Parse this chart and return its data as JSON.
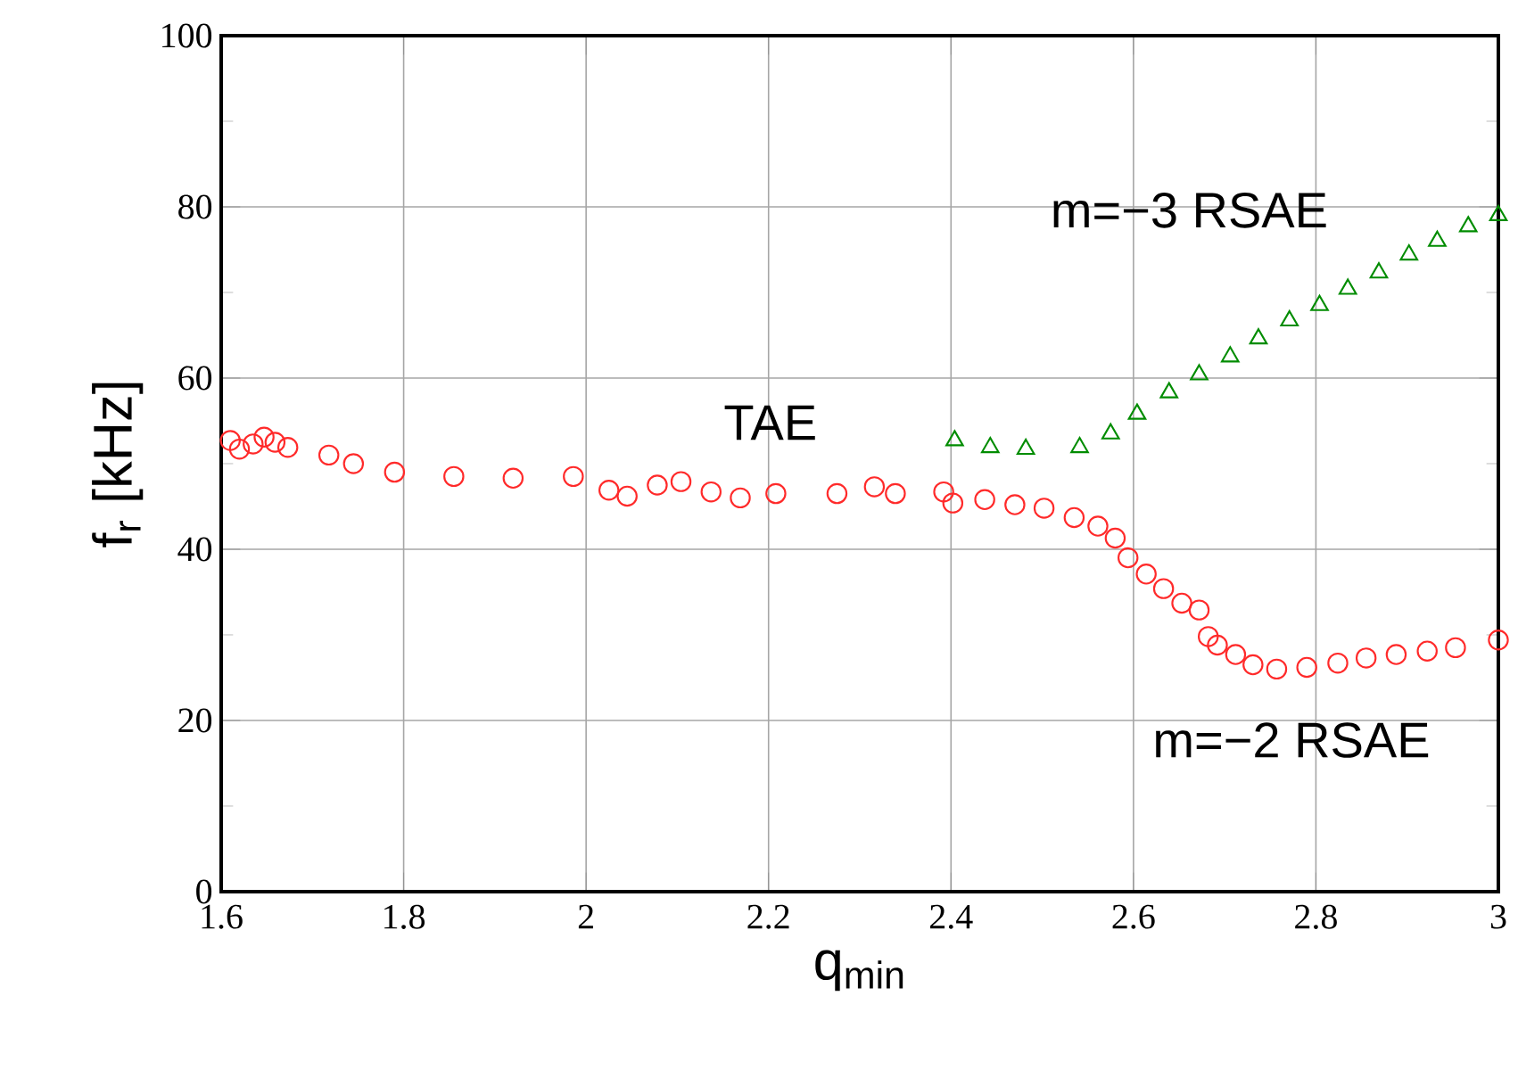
{
  "chart_data": {
    "type": "scatter",
    "xlabel": "q$_{min}$",
    "ylabel": "f$_{r}$ [kHz]",
    "xlim": [
      1.6,
      3
    ],
    "ylim": [
      0,
      100
    ],
    "xticks": [
      1.6,
      1.8,
      2,
      2.2,
      2.4,
      2.6,
      2.8,
      3
    ],
    "yticks": [
      0,
      20,
      40,
      60,
      80,
      100
    ],
    "grid": true,
    "series": [
      {
        "color": "#ff2a2a",
        "marker": "circle",
        "x": [
          1.61,
          1.62,
          1.635,
          1.647,
          1.659,
          1.673,
          1.718,
          1.745,
          1.79,
          1.855,
          1.92,
          1.986,
          2.025,
          2.045,
          2.078,
          2.104,
          2.137,
          2.169,
          2.208,
          2.275,
          2.316,
          2.339,
          2.392,
          2.402,
          2.437,
          2.47,
          2.502,
          2.535,
          2.561,
          2.58,
          2.594,
          2.614,
          2.633,
          2.653,
          2.672,
          2.682,
          2.692,
          2.712,
          2.731,
          2.757,
          2.79,
          2.824,
          2.855,
          2.888,
          2.922,
          2.953,
          3.0
        ],
        "values": [
          52.7,
          51.7,
          52.3,
          53.1,
          52.5,
          51.9,
          51,
          50,
          49,
          48.5,
          48.3,
          48.5,
          46.9,
          46.2,
          47.5,
          47.9,
          46.7,
          46,
          46.5,
          46.5,
          47.3,
          46.5,
          46.7,
          45.4,
          45.8,
          45.2,
          44.8,
          43.7,
          42.7,
          41.3,
          39,
          37.1,
          35.4,
          33.7,
          32.9,
          29.8,
          28.8,
          27.7,
          26.5,
          26,
          26.2,
          26.7,
          27.3,
          27.7,
          28.1,
          28.5,
          29.4
        ]
      },
      {
        "color": "#008c00",
        "marker": "triangle",
        "x": [
          2.404,
          2.443,
          2.482,
          2.541,
          2.575,
          2.604,
          2.639,
          2.672,
          2.706,
          2.737,
          2.771,
          2.804,
          2.835,
          2.869,
          2.902,
          2.933,
          2.967,
          3.0
        ],
        "values": [
          52.7,
          51.9,
          51.7,
          51.9,
          53.5,
          55.8,
          58.3,
          60.4,
          62.5,
          64.6,
          66.7,
          68.5,
          70.4,
          72.3,
          74.4,
          76,
          77.7,
          79
        ]
      }
    ],
    "annotations": [
      "TAE",
      "m=−3 RSAE",
      "m=−2 RSAE"
    ]
  }
}
